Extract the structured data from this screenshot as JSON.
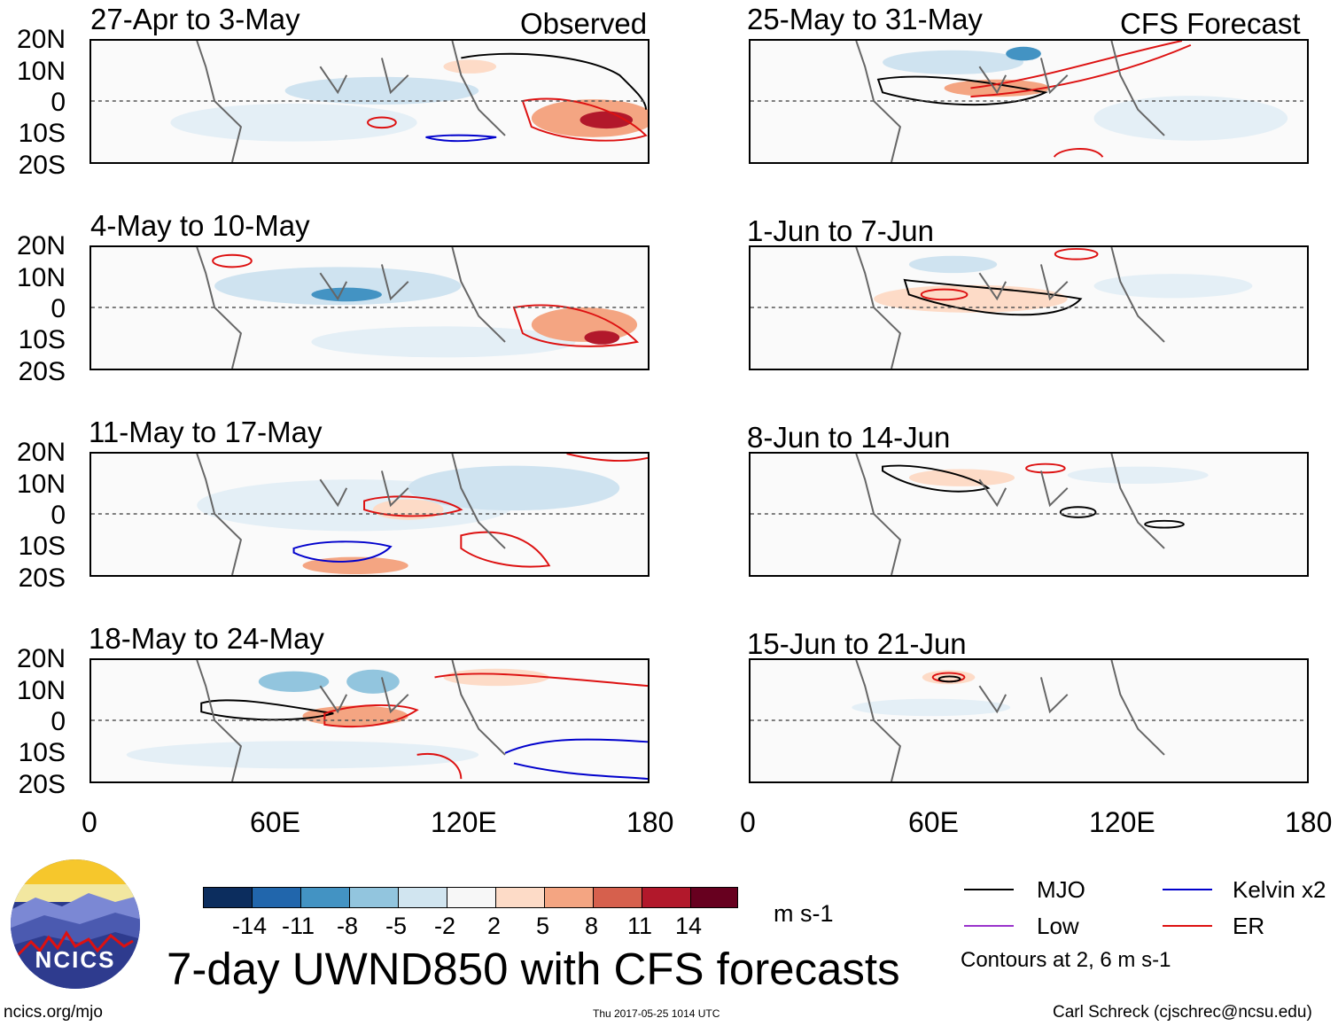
{
  "observed_label": "Observed",
  "forecast_label": "CFS Forecast",
  "panels_left": [
    {
      "title": "27-Apr to 3-May"
    },
    {
      "title": "4-May to 10-May"
    },
    {
      "title": "11-May to 17-May"
    },
    {
      "title": "18-May to 24-May"
    }
  ],
  "panels_right": [
    {
      "title": "25-May to 31-May"
    },
    {
      "title": "1-Jun to 7-Jun"
    },
    {
      "title": "8-Jun to 14-Jun"
    },
    {
      "title": "15-Jun to 21-Jun"
    }
  ],
  "lat_labels": [
    "20N",
    "10N",
    "0",
    "10S",
    "20S"
  ],
  "lon_labels": [
    "0",
    "60E",
    "120E",
    "180"
  ],
  "colorbar": {
    "colors": [
      "#0c2d5e",
      "#2166ac",
      "#4393c3",
      "#92c5de",
      "#d1e5f0",
      "#f7f7f7",
      "#fddbc7",
      "#f4a582",
      "#d6604d",
      "#b2182b",
      "#67001f"
    ],
    "tick_labels": [
      "-14",
      "-11",
      "-8",
      "-5",
      "-2",
      "2",
      "5",
      "8",
      "11",
      "14"
    ],
    "units": "m s-1"
  },
  "main_title": "7-day UWND850 with CFS forecasts",
  "legend": {
    "items": [
      {
        "label": "MJO",
        "color": "#000000"
      },
      {
        "label": "Low",
        "color": "#9933cc"
      },
      {
        "label": "Kelvin x2",
        "color": "#0000cc"
      },
      {
        "label": "ER",
        "color": "#dd1111"
      }
    ],
    "contours_note": "Contours at 2, 6 m s-1"
  },
  "logo_text": "NCICS",
  "footer": {
    "left": "ncics.org/mjo",
    "center": "Thu 2017-05-25 1014 UTC",
    "right": "Carl Schreck (cjschrec@ncsu.edu)"
  }
}
